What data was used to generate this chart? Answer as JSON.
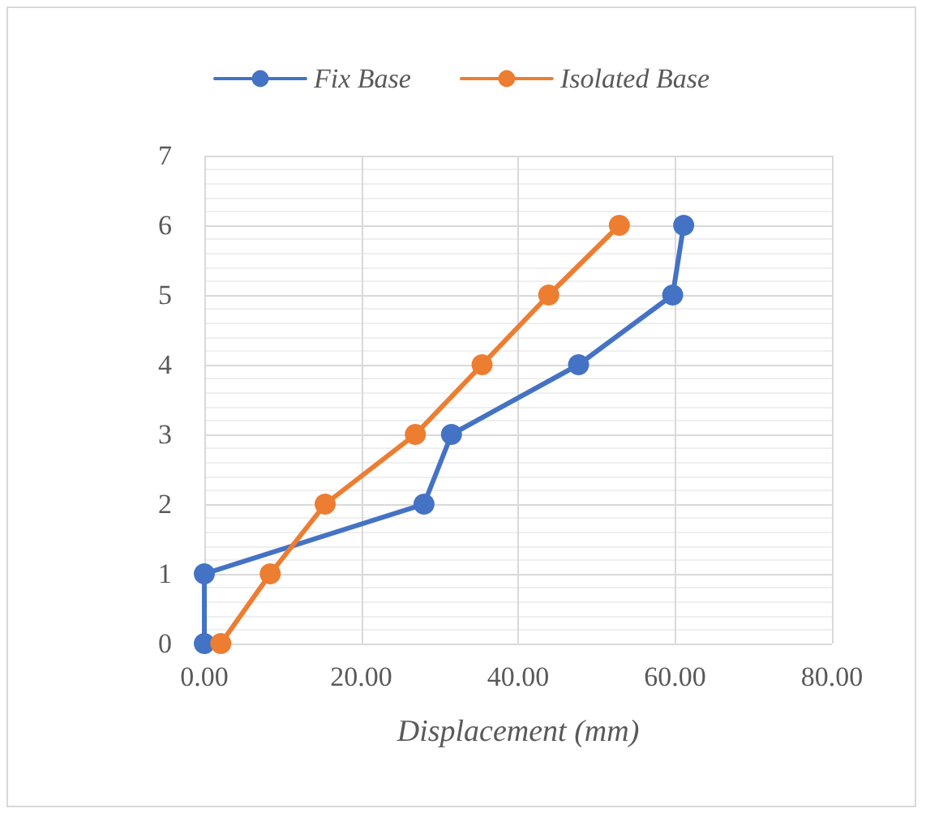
{
  "chart_data": {
    "type": "line",
    "xlabel": "Displacement (mm)",
    "series": [
      {
        "name": "Fix Base",
        "color": "#4472c4",
        "x": [
          0,
          0,
          28.0,
          31.5,
          47.7,
          59.7,
          61.1
        ],
        "values": [
          0,
          1,
          2,
          3,
          4,
          5,
          6
        ]
      },
      {
        "name": "Isolated Base",
        "color": "#ed7d31",
        "x": [
          2.1,
          8.4,
          15.4,
          26.9,
          35.4,
          43.9,
          52.9
        ],
        "values": [
          0,
          1,
          2,
          3,
          4,
          5,
          6
        ]
      }
    ],
    "xlim": [
      0,
      80
    ],
    "xticks": [
      {
        "value": 0,
        "label": "0.00"
      },
      {
        "value": 20,
        "label": "20.00"
      },
      {
        "value": 40,
        "label": "40.00"
      },
      {
        "value": 60,
        "label": "60.00"
      },
      {
        "value": 80,
        "label": "80.00"
      }
    ],
    "ylim": [
      0,
      7
    ],
    "yticks": [
      0,
      1,
      2,
      3,
      4,
      5,
      6,
      7
    ],
    "grid": true,
    "legend": "top",
    "marker": "circle",
    "line_style": "solid"
  }
}
